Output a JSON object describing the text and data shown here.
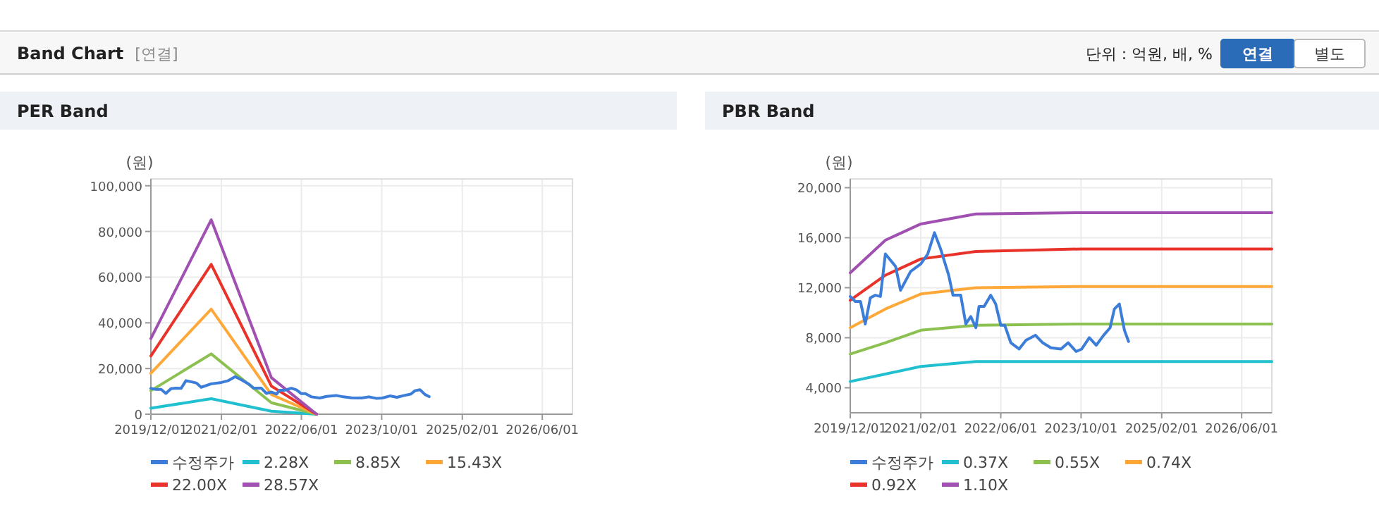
{
  "chart_data": [
    {
      "type": "other",
      "title": "Band Chart",
      "annotations": [
        "[연결]",
        "단위 : 억원, 배, %",
        "연결",
        "별도"
      ]
    },
    {
      "type": "line",
      "title": "PER Band",
      "ylabel": "(원)",
      "xlim": [
        "2019-12-01",
        "2026-12-01"
      ],
      "ylim": [
        0,
        103000
      ],
      "xticks": [
        {
          "value": "2019-12-01",
          "label": "2019/12/01"
        },
        {
          "value": "2021-02-01",
          "label": "2021/02/01"
        },
        {
          "value": "2022-06-01",
          "label": "2022/06/01"
        },
        {
          "value": "2023-10-01",
          "label": "2023/10/01"
        },
        {
          "value": "2025-02-01",
          "label": "2025/02/01"
        },
        {
          "value": "2026-06-01",
          "label": "2026/06/01"
        }
      ],
      "yticks": [
        0,
        {
          "value": 20000,
          "label": "20,000"
        },
        {
          "value": 40000,
          "label": "40,000"
        },
        {
          "value": 60000,
          "label": "60,000"
        },
        {
          "value": 80000,
          "label": "80,000"
        },
        {
          "value": 100000,
          "label": "100,000"
        }
      ],
      "grid": true,
      "legend": "bottom",
      "marker": "none",
      "line_style": "solid",
      "series": [
        {
          "name": "수정주가",
          "color": "#3b7dd8",
          "x": [
            "2019-12-01",
            "2020-01-01",
            "2020-02-01",
            "2020-03-01",
            "2020-04-01",
            "2020-05-01",
            "2020-06-01",
            "2020-07-01",
            "2020-09-01",
            "2020-10-01",
            "2020-12-01",
            "2021-02-01",
            "2021-03-15",
            "2021-04-25",
            "2021-06-01",
            "2021-07-20",
            "2021-08-15",
            "2021-10-01",
            "2021-11-01",
            "2021-12-01",
            "2022-01-01",
            "2022-01-20",
            "2022-02-20",
            "2022-04-01",
            "2022-05-01",
            "2022-06-01",
            "2022-06-25",
            "2022-08-01",
            "2022-09-20",
            "2022-11-01",
            "2022-12-28",
            "2023-02-10",
            "2023-04-01",
            "2023-06-01",
            "2023-07-15",
            "2023-09-01",
            "2023-10-05",
            "2023-11-20",
            "2024-01-01",
            "2024-02-15",
            "2024-03-25",
            "2024-04-20",
            "2024-05-20",
            "2024-06-20",
            "2024-07-15"
          ],
          "values": [
            11300,
            10900,
            10900,
            9100,
            11200,
            11400,
            11300,
            14700,
            13700,
            11800,
            13300,
            13900,
            14700,
            16400,
            15100,
            13000,
            11400,
            11400,
            9100,
            9700,
            8800,
            10500,
            10500,
            11400,
            10700,
            9000,
            9000,
            7600,
            7100,
            7800,
            8200,
            7600,
            7200,
            7100,
            7600,
            6900,
            7100,
            8000,
            7400,
            8200,
            8800,
            10300,
            10700,
            8600,
            7700
          ]
        },
        {
          "name": "2.28X",
          "color": "#20c0d0",
          "x": [
            "2019-12-01",
            "2020-12-01",
            "2021-12-01",
            "2022-09-01"
          ],
          "values": [
            2600,
            6800,
            1300,
            0
          ]
        },
        {
          "name": "8.85X",
          "color": "#8cc152",
          "x": [
            "2019-12-01",
            "2020-12-01",
            "2021-12-01",
            "2022-09-01"
          ],
          "values": [
            10300,
            26400,
            5000,
            0
          ]
        },
        {
          "name": "15.43X",
          "color": "#ffa83a",
          "x": [
            "2019-12-01",
            "2020-12-01",
            "2021-12-01",
            "2022-09-01"
          ],
          "values": [
            17900,
            46000,
            8600,
            0
          ]
        },
        {
          "name": "22.00X",
          "color": "#e8322a",
          "x": [
            "2019-12-01",
            "2020-12-01",
            "2021-12-01",
            "2022-09-01"
          ],
          "values": [
            25500,
            65600,
            12300,
            0
          ]
        },
        {
          "name": "28.57X",
          "color": "#a050b0",
          "x": [
            "2019-12-01",
            "2020-12-01",
            "2021-12-01",
            "2022-09-01"
          ],
          "values": [
            33100,
            85100,
            16000,
            0
          ]
        }
      ]
    },
    {
      "type": "line",
      "title": "PBR Band",
      "ylabel": "(원)",
      "xlim": [
        "2019-12-01",
        "2026-12-01"
      ],
      "ylim": [
        2000,
        20700
      ],
      "xticks": [
        {
          "value": "2019-12-01",
          "label": "2019/12/01"
        },
        {
          "value": "2021-02-01",
          "label": "2021/02/01"
        },
        {
          "value": "2022-06-01",
          "label": "2022/06/01"
        },
        {
          "value": "2023-10-01",
          "label": "2023/10/01"
        },
        {
          "value": "2025-02-01",
          "label": "2025/02/01"
        },
        {
          "value": "2026-06-01",
          "label": "2026/06/01"
        }
      ],
      "yticks": [
        {
          "value": 4000,
          "label": "4,000"
        },
        {
          "value": 8000,
          "label": "8,000"
        },
        {
          "value": 12000,
          "label": "12,000"
        },
        {
          "value": 16000,
          "label": "16,000"
        },
        {
          "value": 20000,
          "label": "20,000"
        }
      ],
      "grid": true,
      "legend": "bottom",
      "marker": "none",
      "line_style": "solid",
      "series": [
        {
          "name": "수정주가",
          "color": "#3b7dd8",
          "x": [
            "2019-12-01",
            "2020-01-01",
            "2020-02-01",
            "2020-03-01",
            "2020-04-01",
            "2020-05-01",
            "2020-06-01",
            "2020-07-01",
            "2020-09-01",
            "2020-10-01",
            "2020-12-01",
            "2021-02-01",
            "2021-03-15",
            "2021-04-25",
            "2021-06-01",
            "2021-07-20",
            "2021-08-15",
            "2021-10-01",
            "2021-11-01",
            "2021-12-01",
            "2022-01-01",
            "2022-01-20",
            "2022-02-20",
            "2022-04-01",
            "2022-05-01",
            "2022-06-01",
            "2022-06-25",
            "2022-08-01",
            "2022-09-20",
            "2022-11-01",
            "2022-12-28",
            "2023-02-10",
            "2023-04-01",
            "2023-06-01",
            "2023-07-15",
            "2023-09-01",
            "2023-10-05",
            "2023-11-20",
            "2024-01-01",
            "2024-02-15",
            "2024-03-25",
            "2024-04-20",
            "2024-05-20",
            "2024-06-20",
            "2024-07-15"
          ],
          "values": [
            11300,
            10900,
            10900,
            9100,
            11200,
            11400,
            11300,
            14700,
            13700,
            11800,
            13300,
            13900,
            14700,
            16400,
            15100,
            13000,
            11400,
            11400,
            9100,
            9700,
            8800,
            10500,
            10500,
            11400,
            10700,
            9000,
            9000,
            7600,
            7100,
            7800,
            8200,
            7600,
            7200,
            7100,
            7600,
            6900,
            7100,
            8000,
            7400,
            8200,
            8800,
            10300,
            10700,
            8600,
            7700
          ]
        },
        {
          "name": "0.37X",
          "color": "#20c0d0",
          "x": [
            "2019-12-01",
            "2020-07-01",
            "2021-02-01",
            "2022-01-01",
            "2023-10-01",
            "2026-12-01"
          ],
          "values": [
            4500,
            5100,
            5700,
            6100,
            6100,
            6100
          ]
        },
        {
          "name": "0.55X",
          "color": "#8cc152",
          "x": [
            "2019-12-01",
            "2020-07-01",
            "2021-02-01",
            "2022-01-01",
            "2023-10-01",
            "2026-12-01"
          ],
          "values": [
            6700,
            7600,
            8600,
            9000,
            9100,
            9100
          ]
        },
        {
          "name": "0.74X",
          "color": "#ffa83a",
          "x": [
            "2019-12-01",
            "2020-07-01",
            "2021-02-01",
            "2022-01-01",
            "2023-10-01",
            "2026-12-01"
          ],
          "values": [
            8800,
            10300,
            11500,
            12000,
            12100,
            12100
          ]
        },
        {
          "name": "0.92X",
          "color": "#e8322a",
          "x": [
            "2019-12-01",
            "2020-07-01",
            "2021-02-01",
            "2022-01-01",
            "2023-10-01",
            "2026-12-01"
          ],
          "values": [
            11000,
            13000,
            14300,
            14900,
            15100,
            15100
          ]
        },
        {
          "name": "1.10X",
          "color": "#a050b0",
          "x": [
            "2019-12-01",
            "2020-07-01",
            "2021-02-01",
            "2022-01-01",
            "2023-10-01",
            "2026-12-01"
          ],
          "values": [
            13200,
            15800,
            17100,
            17900,
            18000,
            18000
          ]
        }
      ]
    }
  ]
}
